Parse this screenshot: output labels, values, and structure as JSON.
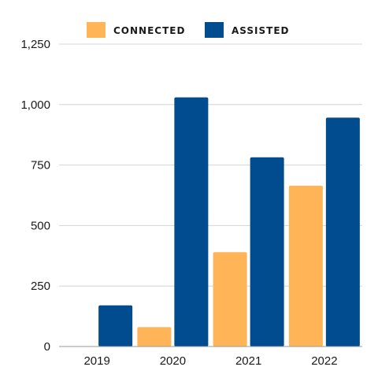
{
  "chart_data": {
    "type": "bar",
    "categories": [
      "2019",
      "2020",
      "2021",
      "2022"
    ],
    "series": [
      {
        "name": "CONNECTED",
        "color": "#FFB457",
        "values": [
          0,
          80,
          390,
          665
        ]
      },
      {
        "name": "ASSISTED",
        "color": "#004C8E",
        "values": [
          170,
          1030,
          782,
          946
        ]
      }
    ],
    "yticks": [
      "0",
      "250",
      "500",
      "750",
      "1,000",
      "1,250"
    ],
    "ylim": [
      0,
      1250
    ],
    "grid": true,
    "legend": "top"
  }
}
